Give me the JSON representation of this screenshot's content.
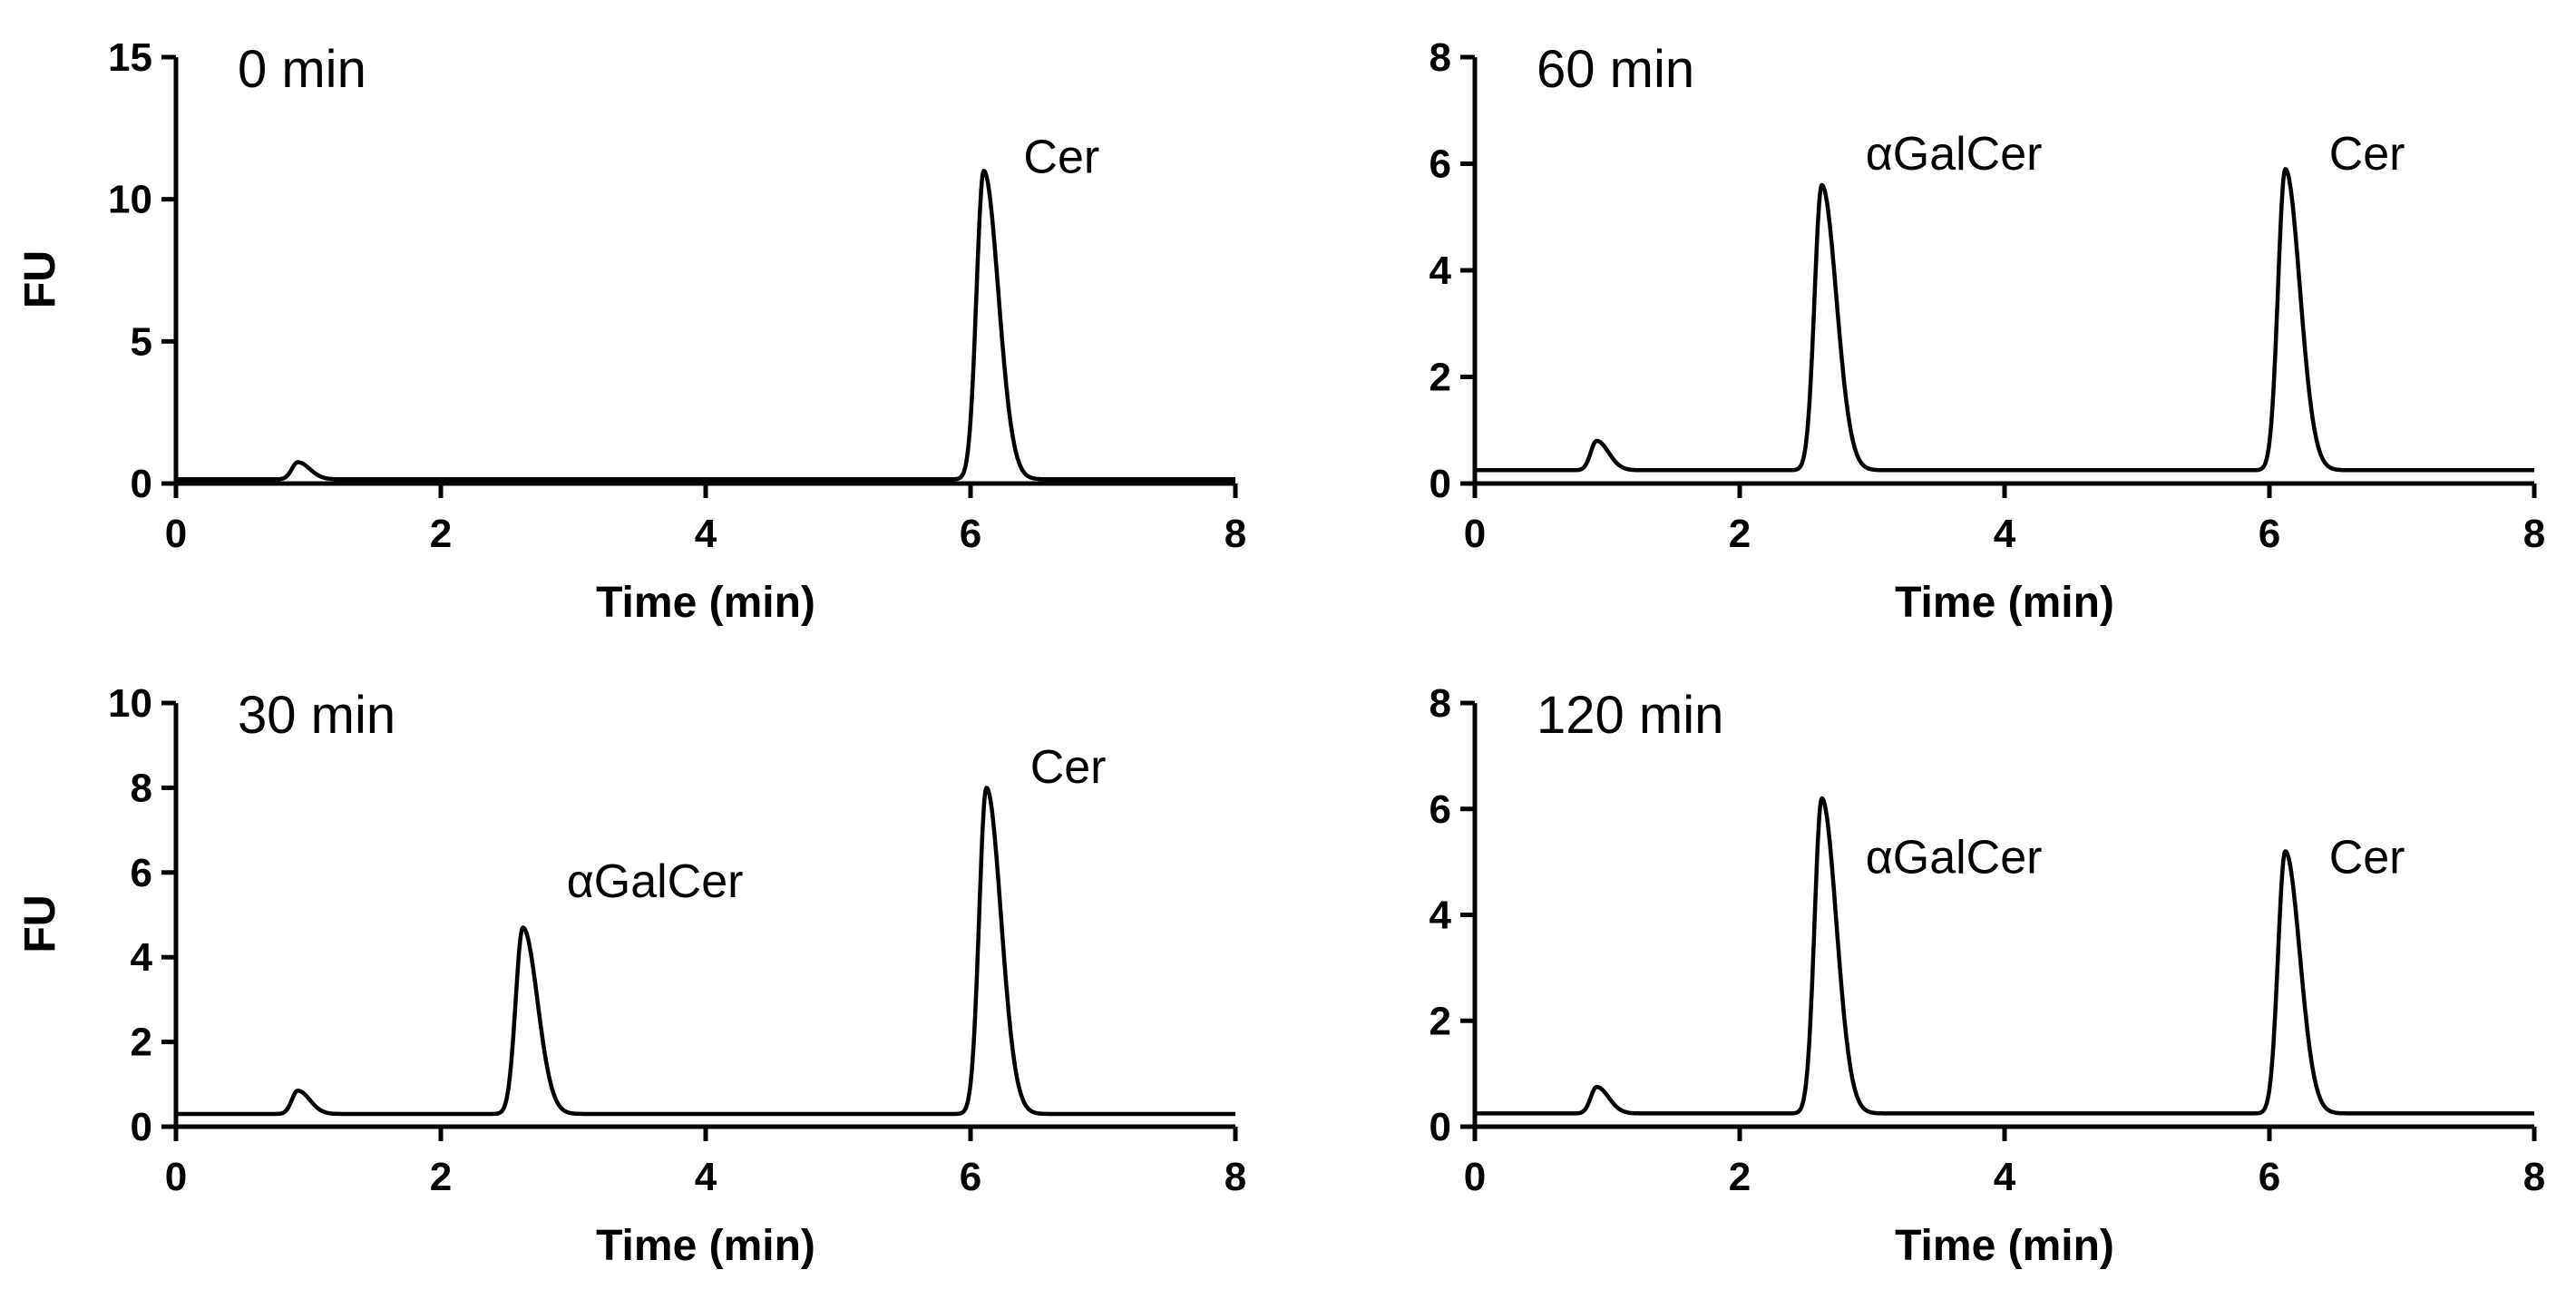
{
  "chart_data": [
    {
      "type": "line",
      "title": "0 min",
      "xlabel": "Time (min)",
      "ylabel": "FU",
      "xlim": [
        0,
        8
      ],
      "ylim": [
        0,
        15
      ],
      "xticks": [
        0,
        2,
        4,
        6,
        8
      ],
      "yticks": [
        0,
        5,
        10,
        15
      ],
      "xtick_labels": [
        "0",
        "2",
        "4",
        "6",
        "8"
      ],
      "ytick_labels": [
        "0",
        "5",
        "10",
        "15"
      ],
      "baseline": 0.15,
      "peaks": [
        {
          "label": "",
          "x": 0.92,
          "y": 0.75
        },
        {
          "label": "Cer",
          "x": 6.1,
          "y": 11.0
        }
      ],
      "peak_labels": [
        {
          "text": "Cer",
          "x": 6.4,
          "y": 11.5
        }
      ]
    },
    {
      "type": "line",
      "title": "60 min",
      "xlabel": "Time (min)",
      "ylabel": "FU",
      "xlim": [
        0,
        8
      ],
      "ylim": [
        0,
        8
      ],
      "xticks": [
        0,
        2,
        4,
        6,
        8
      ],
      "yticks": [
        0,
        2,
        4,
        6,
        8
      ],
      "xtick_labels": [
        "0",
        "2",
        "4",
        "6",
        "8"
      ],
      "ytick_labels": [
        "0",
        "2",
        "4",
        "6",
        "8"
      ],
      "baseline": 0.25,
      "peaks": [
        {
          "label": "",
          "x": 0.92,
          "y": 0.8
        },
        {
          "label": "αGalCer",
          "x": 2.62,
          "y": 5.6
        },
        {
          "label": "Cer",
          "x": 6.12,
          "y": 5.9
        }
      ],
      "peak_labels": [
        {
          "text": "αGalCer",
          "x": 2.95,
          "y": 6.2
        },
        {
          "text": "Cer",
          "x": 6.45,
          "y": 6.2
        }
      ]
    },
    {
      "type": "line",
      "title": "30 min",
      "xlabel": "Time (min)",
      "ylabel": "FU",
      "xlim": [
        0,
        8
      ],
      "ylim": [
        0,
        10
      ],
      "xticks": [
        0,
        2,
        4,
        6,
        8
      ],
      "yticks": [
        0,
        2,
        4,
        6,
        8,
        10
      ],
      "xtick_labels": [
        "0",
        "2",
        "4",
        "6",
        "8"
      ],
      "ytick_labels": [
        "0",
        "2",
        "4",
        "6",
        "8",
        "10"
      ],
      "baseline": 0.3,
      "peaks": [
        {
          "label": "",
          "x": 0.92,
          "y": 0.85
        },
        {
          "label": "αGalCer",
          "x": 2.62,
          "y": 4.7
        },
        {
          "label": "Cer",
          "x": 6.12,
          "y": 8.0
        }
      ],
      "peak_labels": [
        {
          "text": "αGalCer",
          "x": 2.95,
          "y": 5.8
        },
        {
          "text": "Cer",
          "x": 6.45,
          "y": 8.5
        }
      ]
    },
    {
      "type": "line",
      "title": "120 min",
      "xlabel": "Time (min)",
      "ylabel": "FU",
      "xlim": [
        0,
        8
      ],
      "ylim": [
        0,
        8
      ],
      "xticks": [
        0,
        2,
        4,
        6,
        8
      ],
      "yticks": [
        0,
        2,
        4,
        6,
        8
      ],
      "xtick_labels": [
        "0",
        "2",
        "4",
        "6",
        "8"
      ],
      "ytick_labels": [
        "0",
        "2",
        "4",
        "6",
        "8"
      ],
      "baseline": 0.25,
      "peaks": [
        {
          "label": "",
          "x": 0.92,
          "y": 0.75
        },
        {
          "label": "αGalCer",
          "x": 2.62,
          "y": 6.2
        },
        {
          "label": "Cer",
          "x": 6.12,
          "y": 5.2
        }
      ],
      "peak_labels": [
        {
          "text": "αGalCer",
          "x": 2.95,
          "y": 5.1
        },
        {
          "text": "Cer",
          "x": 6.45,
          "y": 5.1
        }
      ]
    }
  ]
}
